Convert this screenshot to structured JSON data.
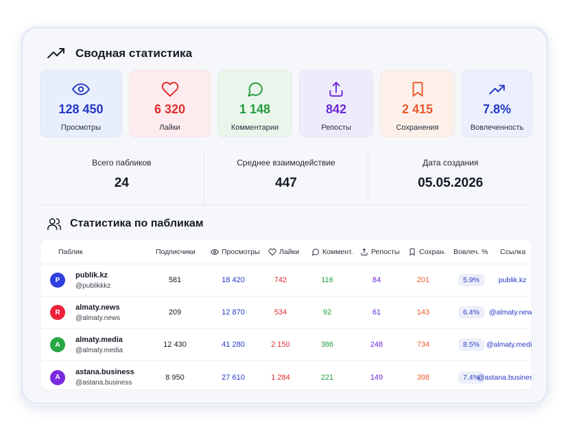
{
  "header": {
    "title": "Сводная статистика",
    "icon": "trending-up-icon"
  },
  "colors": {
    "views": "#2337c4",
    "likes": "#e02c2c",
    "comments": "#239b3b",
    "reposts": "#6b27d8",
    "saves": "#ea5a2c",
    "engagement": "#2337c4"
  },
  "cards": [
    {
      "value": "128 450",
      "label": "Просмотры",
      "icon": "eye-icon"
    },
    {
      "value": "6 320",
      "label": "Лайки",
      "icon": "heart-icon"
    },
    {
      "value": "1 148",
      "label": "Комментарии",
      "icon": "comment-icon"
    },
    {
      "value": "842",
      "label": "Репосты",
      "icon": "share-icon"
    },
    {
      "value": "2 415",
      "label": "Сохранения",
      "icon": "bookmark-icon"
    },
    {
      "value": "7.8%",
      "label": "Вовлеченность",
      "icon": "trending-up-icon"
    }
  ],
  "summary": [
    {
      "label": "Всего пабликов",
      "value": "24"
    },
    {
      "label": "Среднее взаимодействие",
      "value": "447"
    },
    {
      "label": "Дата создания",
      "value": "05.05.2026"
    }
  ],
  "section": {
    "title": "Статистика по пабликам",
    "icon": "users-icon"
  },
  "table": {
    "headers": {
      "public": "Паблик",
      "subscribers": "Подписчики",
      "views": "Просмотры",
      "likes": "Лайки",
      "comments": "Коммент.",
      "reposts": "Репосты",
      "saves": "Сохран.",
      "engagement": "Вовлеч. %",
      "link": "Ссылка"
    },
    "rows": [
      {
        "letter": "P",
        "avatar_color": "#2f3fe0",
        "name": "publik.kz",
        "handle": "@publikkkz",
        "subscribers": "581",
        "views": "18 420",
        "likes": "742",
        "comments": "116",
        "reposts": "84",
        "saves": "201",
        "engagement": "5.9%",
        "link": "publik.kz"
      },
      {
        "letter": "R",
        "avatar_color": "#ee2038",
        "name": "almaty.news",
        "handle": "@almaty.news",
        "subscribers": "209",
        "views": "12 870",
        "likes": "534",
        "comments": "92",
        "reposts": "61",
        "saves": "143",
        "engagement": "6.4%",
        "link": "@almaty.news"
      },
      {
        "letter": "A",
        "avatar_color": "#26a645",
        "name": "almaty.media",
        "handle": "@almaty.media",
        "subscribers": "12 430",
        "views": "41 280",
        "likes": "2 150",
        "comments": "386",
        "reposts": "248",
        "saves": "734",
        "engagement": "8.5%",
        "link": "@almaty.media"
      },
      {
        "letter": "A",
        "avatar_color": "#7a2ae0",
        "name": "astana.business",
        "handle": "@astana.business",
        "subscribers": "8 950",
        "views": "27 610",
        "likes": "1 284",
        "comments": "221",
        "reposts": "149",
        "saves": "398",
        "engagement": "7.4%",
        "link": "@astana.business"
      }
    ]
  }
}
